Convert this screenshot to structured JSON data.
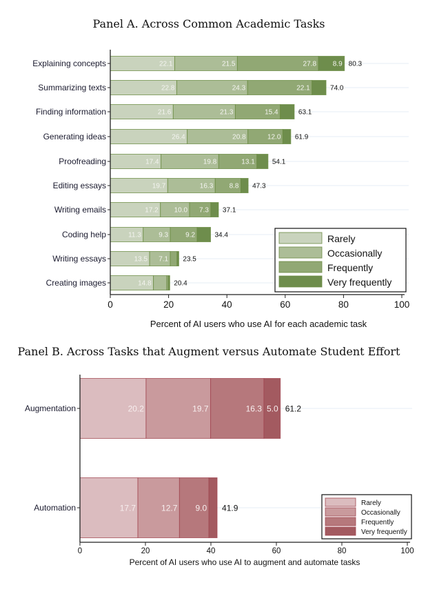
{
  "chart_data": [
    {
      "type": "bar",
      "orientation": "horizontal",
      "stacked": true,
      "title": "Panel A. Across Common Academic Tasks",
      "xlabel": "Percent of AI users who use AI for each academic task",
      "ylabel": "",
      "xlim": [
        0,
        100
      ],
      "xticks": [
        0,
        20,
        40,
        60,
        80,
        100
      ],
      "grid": false,
      "legend_position": "bottom-right",
      "categories": [
        "Explaining concepts",
        "Summarizing texts",
        "Finding information",
        "Generating ideas",
        "Proofreading",
        "Editing essays",
        "Writing emails",
        "Coding help",
        "Writing essays",
        "Creating images"
      ],
      "series": [
        {
          "name": "Rarely",
          "color": "#c9d3bd",
          "values": [
            22.1,
            22.8,
            21.6,
            26.4,
            17.4,
            19.7,
            17.2,
            11.3,
            13.5,
            14.8
          ],
          "show_labels": [
            true,
            true,
            true,
            true,
            true,
            true,
            true,
            true,
            true,
            true
          ]
        },
        {
          "name": "Occasionally",
          "color": "#acbd97",
          "values": [
            21.5,
            24.3,
            21.3,
            20.8,
            19.8,
            16.3,
            10.0,
            9.3,
            7.1,
            4.6
          ],
          "show_labels": [
            true,
            true,
            true,
            true,
            true,
            true,
            true,
            true,
            true,
            false
          ]
        },
        {
          "name": "Frequently",
          "color": "#91a874",
          "values": [
            27.8,
            22.1,
            15.4,
            12.0,
            13.1,
            8.8,
            7.3,
            9.2,
            2.3,
            0.6
          ],
          "show_labels": [
            true,
            true,
            true,
            true,
            true,
            true,
            true,
            true,
            false,
            false
          ]
        },
        {
          "name": "Very frequently",
          "color": "#6e8d4c",
          "values": [
            8.9,
            4.8,
            4.8,
            2.7,
            3.8,
            2.5,
            2.6,
            4.6,
            0.6,
            0.4
          ],
          "show_labels": [
            true,
            false,
            false,
            false,
            false,
            false,
            false,
            false,
            false,
            false
          ]
        }
      ],
      "totals": [
        80.3,
        74.0,
        63.1,
        61.9,
        54.1,
        47.3,
        37.1,
        34.4,
        23.5,
        20.4
      ],
      "edge_color": "#6a8b42"
    },
    {
      "type": "bar",
      "orientation": "horizontal",
      "stacked": true,
      "title": "Panel B. Across Tasks that Augment versus Automate Student Effort",
      "xlabel": "Percent of AI users who use AI to augment and automate tasks",
      "ylabel": "",
      "xlim": [
        0,
        100
      ],
      "xticks": [
        0,
        20,
        40,
        60,
        80,
        100
      ],
      "grid": false,
      "legend_position": "bottom-right",
      "categories": [
        "Augmentation",
        "Automation"
      ],
      "series": [
        {
          "name": "Rarely",
          "color": "#dbbcbf",
          "values": [
            20.2,
            17.7
          ],
          "show_labels": [
            true,
            true
          ]
        },
        {
          "name": "Occasionally",
          "color": "#c99a9d",
          "values": [
            19.7,
            12.7
          ],
          "show_labels": [
            true,
            true
          ]
        },
        {
          "name": "Frequently",
          "color": "#b6787c",
          "values": [
            16.3,
            9.0
          ],
          "show_labels": [
            true,
            true
          ]
        },
        {
          "name": "Very frequently",
          "color": "#a35a60",
          "values": [
            5.0,
            2.5
          ],
          "show_labels": [
            true,
            false
          ]
        }
      ],
      "totals": [
        61.2,
        41.9
      ],
      "edge_color": "#a04650"
    }
  ]
}
